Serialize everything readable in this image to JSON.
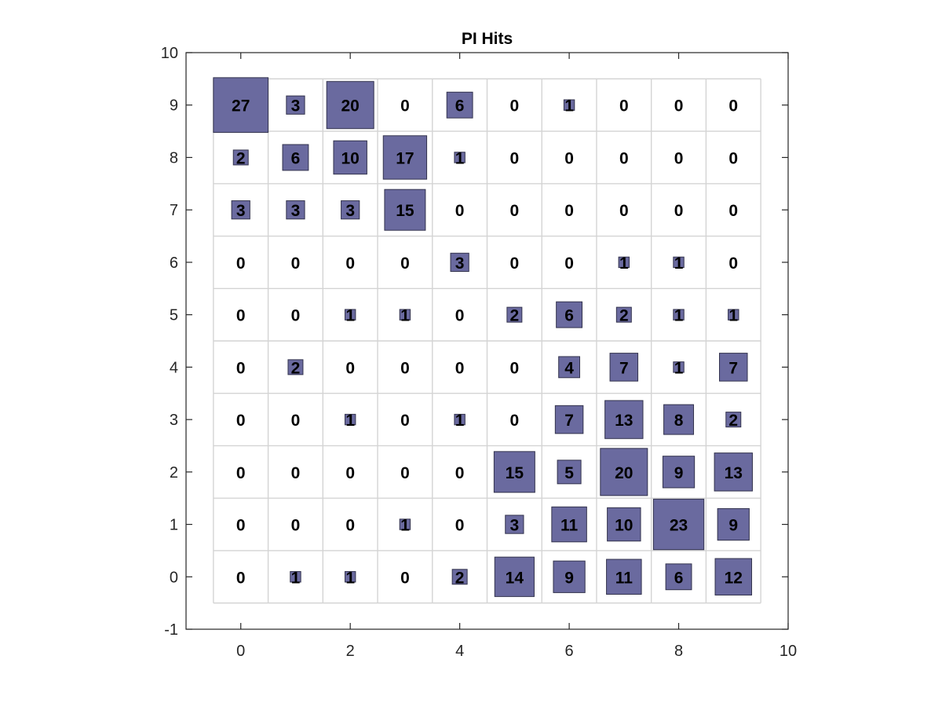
{
  "chart_data": {
    "type": "heatmap",
    "title": "PI Hits",
    "xlabel": "",
    "ylabel": "",
    "xlim": [
      -1,
      10
    ],
    "ylim": [
      -1,
      10
    ],
    "x_ticks": [
      "0",
      "2",
      "4",
      "6",
      "8",
      "10"
    ],
    "y_ticks": [
      "-1",
      "0",
      "1",
      "2",
      "3",
      "4",
      "5",
      "6",
      "7",
      "8",
      "9",
      "10"
    ],
    "grid": true,
    "grid_x_range": [
      -0.5,
      9.5
    ],
    "grid_y_range": [
      -0.5,
      9.5
    ],
    "x": [
      0,
      1,
      2,
      3,
      4,
      5,
      6,
      7,
      8,
      9
    ],
    "y": [
      9,
      8,
      7,
      6,
      5,
      4,
      3,
      2,
      1,
      0
    ],
    "values": [
      [
        27,
        3,
        20,
        0,
        6,
        0,
        1,
        0,
        0,
        0
      ],
      [
        2,
        6,
        10,
        17,
        1,
        0,
        0,
        0,
        0,
        0
      ],
      [
        3,
        3,
        3,
        15,
        0,
        0,
        0,
        0,
        0,
        0
      ],
      [
        0,
        0,
        0,
        0,
        3,
        0,
        0,
        1,
        1,
        0
      ],
      [
        0,
        0,
        1,
        1,
        0,
        2,
        6,
        2,
        1,
        1
      ],
      [
        0,
        2,
        0,
        0,
        0,
        0,
        4,
        7,
        1,
        7
      ],
      [
        0,
        0,
        1,
        0,
        1,
        0,
        7,
        13,
        8,
        2
      ],
      [
        0,
        0,
        0,
        0,
        0,
        15,
        5,
        20,
        9,
        13
      ],
      [
        0,
        0,
        0,
        1,
        0,
        3,
        11,
        10,
        23,
        9
      ],
      [
        0,
        1,
        1,
        0,
        2,
        14,
        9,
        11,
        6,
        12
      ]
    ],
    "square_color": "#6a6a9f",
    "square_edge_color": "#33334d",
    "grid_color": "#d4d4d4"
  }
}
